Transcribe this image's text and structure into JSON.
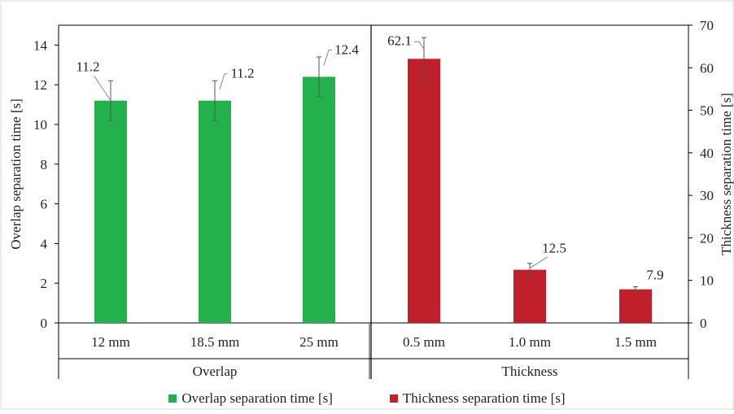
{
  "chart_data": {
    "type": "bar",
    "panels": [
      {
        "group_label": "Overlap",
        "categories": [
          "12 mm",
          "18.5 mm",
          "25 mm"
        ],
        "values": [
          11.2,
          11.2,
          12.4
        ],
        "errors": [
          1.0,
          1.0,
          1.0
        ],
        "data_labels": [
          "11.2",
          "11.2",
          "12.4"
        ],
        "axis": "left",
        "color": "#22b14c"
      },
      {
        "group_label": "Thickness",
        "categories": [
          "0.5 mm",
          "1.0 mm",
          "1.5 mm"
        ],
        "values": [
          62.1,
          12.5,
          7.9
        ],
        "errors": [
          5.0,
          1.5,
          0.6
        ],
        "data_labels": [
          "62.1",
          "12.5",
          "7.9"
        ],
        "axis": "right",
        "color": "#c0202a"
      }
    ],
    "y_left": {
      "label": "Overlap separation time [s]",
      "ylim": [
        0,
        15
      ],
      "ticks": [
        "0",
        "2",
        "4",
        "6",
        "8",
        "10",
        "12",
        "14"
      ]
    },
    "y_right": {
      "label": "Thickness separation time [s]",
      "ylim": [
        0,
        70
      ],
      "ticks": [
        "0",
        "10",
        "20",
        "30",
        "40",
        "50",
        "60",
        "70"
      ]
    },
    "legend": {
      "position": "bottom",
      "items": [
        {
          "label": "Overlap separation time [s]",
          "color": "#22b14c"
        },
        {
          "label": "Thickness separation time [s]",
          "color": "#c0202a"
        }
      ]
    },
    "grid": false
  }
}
